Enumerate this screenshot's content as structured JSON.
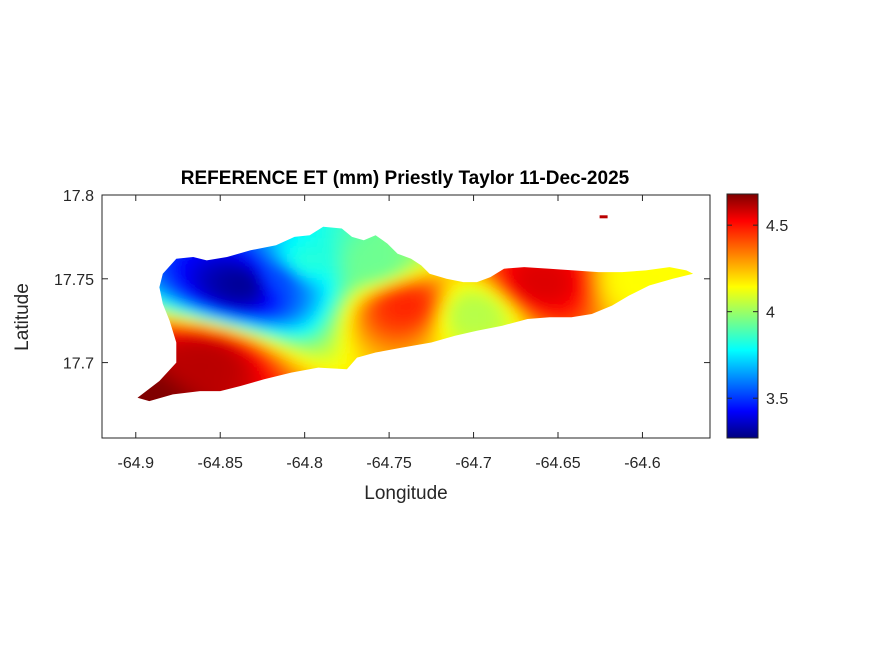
{
  "chart_data": {
    "type": "heatmap",
    "title": "REFERENCE ET (mm) Priestly Taylor 11-Dec-2025",
    "xlabel": "Longitude",
    "ylabel": "Latitude",
    "xlim": [
      -64.92,
      -64.56
    ],
    "ylim": [
      17.655,
      17.8
    ],
    "xticks": [
      -64.9,
      -64.85,
      -64.8,
      -64.75,
      -64.7,
      -64.65,
      -64.6
    ],
    "xtick_labels": [
      "-64.9",
      "-64.85",
      "-64.8",
      "-64.75",
      "-64.7",
      "-64.65",
      "-64.6"
    ],
    "yticks": [
      17.7,
      17.75,
      17.8
    ],
    "ytick_labels": [
      "17.7",
      "17.75",
      "17.8"
    ],
    "colorbar": {
      "colormap": "jet",
      "clim": [
        3.27,
        4.68
      ],
      "ticks": [
        3.5,
        4,
        4.5
      ],
      "tick_labels": [
        "3.5",
        "4",
        "4.5"
      ]
    },
    "grid": false,
    "outline_lonlat": [
      [
        -64.899,
        17.679
      ],
      [
        -64.886,
        17.689
      ],
      [
        -64.876,
        17.7
      ],
      [
        -64.876,
        17.712
      ],
      [
        -64.88,
        17.725
      ],
      [
        -64.884,
        17.735
      ],
      [
        -64.886,
        17.745
      ],
      [
        -64.884,
        17.753
      ],
      [
        -64.876,
        17.762
      ],
      [
        -64.866,
        17.763
      ],
      [
        -64.858,
        17.761
      ],
      [
        -64.846,
        17.763
      ],
      [
        -64.832,
        17.767
      ],
      [
        -64.817,
        17.77
      ],
      [
        -64.806,
        17.775
      ],
      [
        -64.797,
        17.776
      ],
      [
        -64.789,
        17.781
      ],
      [
        -64.778,
        17.78
      ],
      [
        -64.772,
        17.775
      ],
      [
        -64.765,
        17.773
      ],
      [
        -64.758,
        17.776
      ],
      [
        -64.751,
        17.771
      ],
      [
        -64.745,
        17.765
      ],
      [
        -64.737,
        17.762
      ],
      [
        -64.731,
        17.758
      ],
      [
        -64.726,
        17.753
      ],
      [
        -64.716,
        17.75
      ],
      [
        -64.706,
        17.748
      ],
      [
        -64.698,
        17.748
      ],
      [
        -64.69,
        17.751
      ],
      [
        -64.682,
        17.756
      ],
      [
        -64.67,
        17.757
      ],
      [
        -64.655,
        17.756
      ],
      [
        -64.641,
        17.755
      ],
      [
        -64.626,
        17.754
      ],
      [
        -64.612,
        17.754
      ],
      [
        -64.598,
        17.755
      ],
      [
        -64.584,
        17.757
      ],
      [
        -64.574,
        17.755
      ],
      [
        -64.57,
        17.753
      ],
      [
        -64.582,
        17.75
      ],
      [
        -64.596,
        17.746
      ],
      [
        -64.608,
        17.74
      ],
      [
        -64.618,
        17.734
      ],
      [
        -64.63,
        17.729
      ],
      [
        -64.642,
        17.727
      ],
      [
        -64.655,
        17.727
      ],
      [
        -64.668,
        17.726
      ],
      [
        -64.683,
        17.722
      ],
      [
        -64.698,
        17.719
      ],
      [
        -64.711,
        17.716
      ],
      [
        -64.725,
        17.712
      ],
      [
        -64.742,
        17.709
      ],
      [
        -64.758,
        17.706
      ],
      [
        -64.769,
        17.703
      ],
      [
        -64.775,
        17.696
      ],
      [
        -64.792,
        17.697
      ],
      [
        -64.808,
        17.694
      ],
      [
        -64.824,
        17.69
      ],
      [
        -64.838,
        17.686
      ],
      [
        -64.85,
        17.683
      ],
      [
        -64.862,
        17.683
      ],
      [
        -64.878,
        17.681
      ],
      [
        -64.892,
        17.677
      ]
    ],
    "islet_lonlat": [
      -64.623,
      17.787
    ],
    "field_description": "ET values (mm): low 3.3–3.6 north-central near -64.83, 17.745; 3.8–4.1 on north shore and central-east; 4.3–4.7 along south coast and south-west; max about 4.68 at south-west tip",
    "values_sample": [
      {
        "lon": -64.835,
        "lat": 17.748,
        "value": 3.3
      },
      {
        "lon": -64.815,
        "lat": 17.752,
        "value": 3.55
      },
      {
        "lon": -64.8,
        "lat": 17.76,
        "value": 3.85
      },
      {
        "lon": -64.76,
        "lat": 17.76,
        "value": 3.95
      },
      {
        "lon": -64.7,
        "lat": 17.73,
        "value": 4.05
      },
      {
        "lon": -64.66,
        "lat": 17.748,
        "value": 4.55
      },
      {
        "lon": -64.6,
        "lat": 17.75,
        "value": 4.15
      },
      {
        "lon": -64.86,
        "lat": 17.7,
        "value": 4.6
      },
      {
        "lon": -64.895,
        "lat": 17.68,
        "value": 4.68
      },
      {
        "lon": -64.74,
        "lat": 17.735,
        "value": 4.45
      }
    ]
  }
}
